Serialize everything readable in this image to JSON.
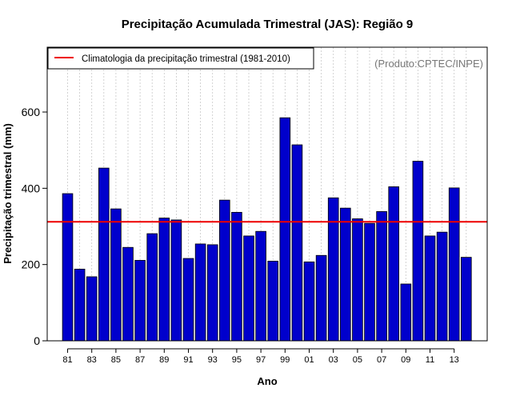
{
  "chart_data": {
    "type": "bar",
    "title": "Precipitação Acumulada Trimestral (JAS): Região 9",
    "xlabel": "Ano",
    "ylabel": "Precipitação trimestral (mm)",
    "source_note": "(Produto:CPTEC/INPE)",
    "legend": {
      "label": "Climatologia da precipitação trimestral (1981-2010)",
      "position": "top-left"
    },
    "categories": [
      "81",
      "82",
      "83",
      "84",
      "85",
      "86",
      "87",
      "88",
      "89",
      "90",
      "91",
      "92",
      "93",
      "94",
      "95",
      "96",
      "97",
      "98",
      "99",
      "00",
      "01",
      "02",
      "03",
      "04",
      "05",
      "06",
      "07",
      "08",
      "09",
      "10",
      "11",
      "12",
      "13",
      "14"
    ],
    "tick_labels": [
      "81",
      "83",
      "85",
      "87",
      "89",
      "91",
      "93",
      "95",
      "97",
      "99",
      "01",
      "03",
      "05",
      "07",
      "09",
      "11",
      "13"
    ],
    "values": [
      386,
      188,
      168,
      453,
      346,
      245,
      211,
      281,
      322,
      317,
      216,
      254,
      252,
      369,
      337,
      275,
      287,
      209,
      585,
      514,
      207,
      224,
      375,
      348,
      320,
      308,
      339,
      404,
      149,
      471,
      275,
      285,
      401,
      219
    ],
    "climatology": 312,
    "ylim": [
      0,
      770
    ],
    "yticks": [
      0,
      200,
      400,
      600
    ],
    "grid": "vertical dotted",
    "colors": {
      "bar": "#0000cc",
      "bar_edge": "#000000",
      "climatology": "#ee0000",
      "grid": "#c8c8c8",
      "note": "#777777"
    }
  }
}
